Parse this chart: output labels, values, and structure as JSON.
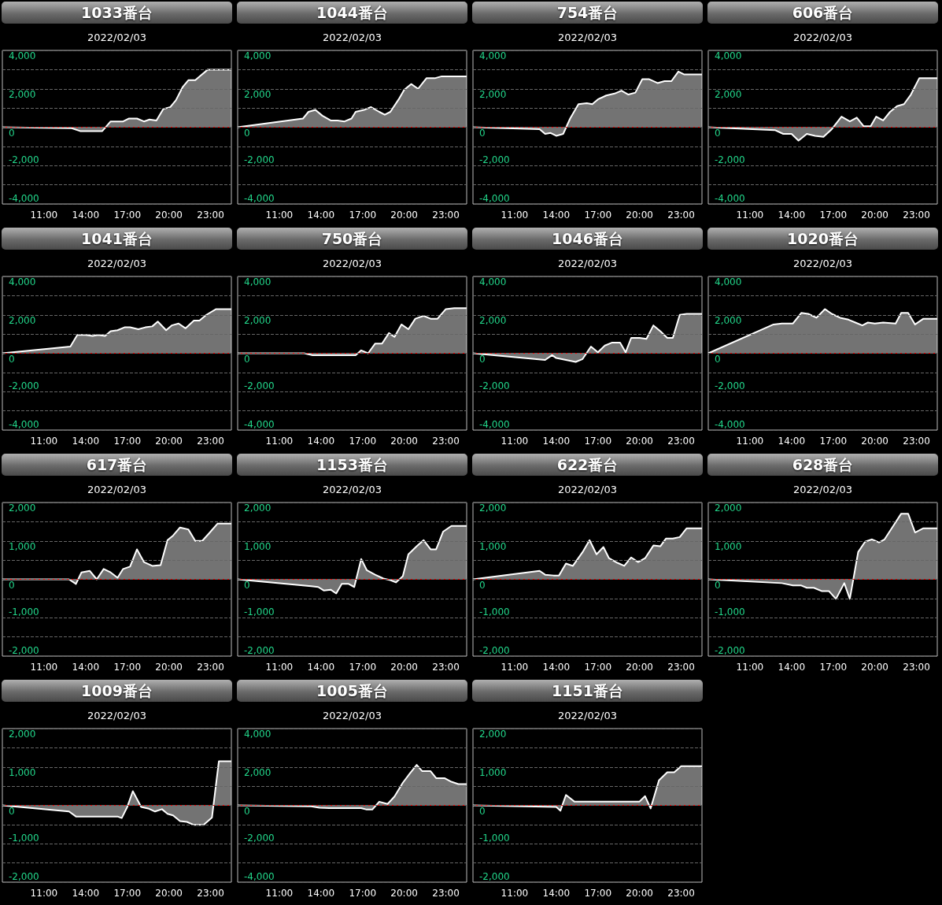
{
  "chart_data": [
    {
      "type": "area",
      "title": "1033番台",
      "subtitle": "2022/02/03",
      "color": "#ffffff",
      "grid": "y",
      "marker": "none",
      "xlim": [
        8,
        24.5
      ],
      "xticks": [
        {
          "value": 11,
          "label": "11:00"
        },
        {
          "value": 14,
          "label": "14:00"
        },
        {
          "value": 17,
          "label": "17:00"
        },
        {
          "value": 20,
          "label": "20:00"
        },
        {
          "value": 23,
          "label": "23:00"
        }
      ],
      "ylim": [
        -4000,
        4000
      ],
      "yticks": [
        {
          "value": -4000,
          "label": "-4,000"
        },
        {
          "value": -3000,
          "label": null
        },
        {
          "value": -2000,
          "label": "-2,000"
        },
        {
          "value": -1000,
          "label": null
        },
        {
          "value": 0,
          "label": "0"
        },
        {
          "value": 1000,
          "label": null
        },
        {
          "value": 2000,
          "label": "2,000"
        },
        {
          "value": 3000,
          "label": null
        },
        {
          "value": 4000,
          "label": "4,000"
        }
      ],
      "ref_lines": [
        {
          "axis": "y",
          "value": 0,
          "color": "#ff0000"
        }
      ],
      "x": [
        8,
        13,
        13.6,
        15.2,
        15.8,
        16.2,
        16.7,
        17.1,
        17.7,
        18.2,
        18.6,
        19.1,
        19.6,
        20.1,
        20.5,
        21,
        21.4,
        21.9,
        22.3,
        22.8,
        23.2,
        24.5
      ],
      "values": [
        0,
        -50,
        -200,
        -200,
        300,
        300,
        300,
        450,
        450,
        300,
        400,
        350,
        950,
        1050,
        1400,
        2100,
        2450,
        2450,
        2700,
        3000,
        3000,
        3000
      ]
    },
    {
      "type": "area",
      "title": "1044番台",
      "subtitle": "2022/02/03",
      "color": "#ffffff",
      "grid": "y",
      "marker": "none",
      "xlim": [
        8,
        24.5
      ],
      "xticks": [
        {
          "value": 11,
          "label": "11:00"
        },
        {
          "value": 14,
          "label": "14:00"
        },
        {
          "value": 17,
          "label": "17:00"
        },
        {
          "value": 20,
          "label": "20:00"
        },
        {
          "value": 23,
          "label": "23:00"
        }
      ],
      "ylim": [
        -4000,
        4000
      ],
      "yticks": [
        {
          "value": -4000,
          "label": "-4,000"
        },
        {
          "value": -3000,
          "label": null
        },
        {
          "value": -2000,
          "label": "-2,000"
        },
        {
          "value": -1000,
          "label": null
        },
        {
          "value": 0,
          "label": "0"
        },
        {
          "value": 1000,
          "label": null
        },
        {
          "value": 2000,
          "label": "2,000"
        },
        {
          "value": 3000,
          "label": null
        },
        {
          "value": 4000,
          "label": "4,000"
        }
      ],
      "ref_lines": [
        {
          "axis": "y",
          "value": 0,
          "color": "#ff0000"
        }
      ],
      "x": [
        8,
        12.7,
        13.1,
        13.6,
        14.1,
        14.7,
        15.2,
        15.7,
        16.2,
        16.5,
        17.1,
        17.6,
        18.2,
        18.6,
        19,
        19.6,
        20,
        20.5,
        21,
        21.6,
        22.2,
        22.7,
        23.3,
        24.5
      ],
      "values": [
        0,
        450,
        800,
        900,
        600,
        350,
        350,
        300,
        450,
        800,
        900,
        1050,
        800,
        650,
        800,
        1450,
        1950,
        2250,
        2000,
        2550,
        2550,
        2650,
        2650,
        2650
      ]
    },
    {
      "type": "area",
      "title": "754番台",
      "subtitle": "2022/02/03",
      "color": "#ffffff",
      "grid": "y",
      "marker": "none",
      "xlim": [
        8,
        24.5
      ],
      "xticks": [
        {
          "value": 11,
          "label": "11:00"
        },
        {
          "value": 14,
          "label": "14:00"
        },
        {
          "value": 17,
          "label": "17:00"
        },
        {
          "value": 20,
          "label": "20:00"
        },
        {
          "value": 23,
          "label": "23:00"
        }
      ],
      "ylim": [
        -4000,
        4000
      ],
      "yticks": [
        {
          "value": -4000,
          "label": "-4,000"
        },
        {
          "value": -3000,
          "label": null
        },
        {
          "value": -2000,
          "label": "-2,000"
        },
        {
          "value": -1000,
          "label": null
        },
        {
          "value": 0,
          "label": "0"
        },
        {
          "value": 1000,
          "label": null
        },
        {
          "value": 2000,
          "label": "2,000"
        },
        {
          "value": 3000,
          "label": null
        },
        {
          "value": 4000,
          "label": "4,000"
        }
      ],
      "ref_lines": [
        {
          "axis": "y",
          "value": 0,
          "color": "#ff0000"
        }
      ],
      "x": [
        8,
        12.8,
        13.2,
        13.6,
        14,
        14.5,
        15,
        15.6,
        16.2,
        16.6,
        17,
        17.6,
        18.2,
        18.7,
        19.2,
        19.7,
        20.2,
        20.7,
        21.3,
        21.8,
        22.3,
        22.8,
        23.2,
        24.5
      ],
      "values": [
        0,
        -100,
        -350,
        -300,
        -450,
        -350,
        450,
        1200,
        1250,
        1200,
        1450,
        1650,
        1750,
        1900,
        1700,
        1800,
        2500,
        2500,
        2300,
        2400,
        2400,
        2900,
        2750,
        2750
      ]
    },
    {
      "type": "area",
      "title": "606番台",
      "subtitle": "2022/02/03",
      "color": "#ffffff",
      "grid": "y",
      "marker": "none",
      "xlim": [
        8,
        24.5
      ],
      "xticks": [
        {
          "value": 11,
          "label": "11:00"
        },
        {
          "value": 14,
          "label": "14:00"
        },
        {
          "value": 17,
          "label": "17:00"
        },
        {
          "value": 20,
          "label": "20:00"
        },
        {
          "value": 23,
          "label": "23:00"
        }
      ],
      "ylim": [
        -4000,
        4000
      ],
      "yticks": [
        {
          "value": -4000,
          "label": "-4,000"
        },
        {
          "value": -3000,
          "label": null
        },
        {
          "value": -2000,
          "label": "-2,000"
        },
        {
          "value": -1000,
          "label": null
        },
        {
          "value": 0,
          "label": "0"
        },
        {
          "value": 1000,
          "label": null
        },
        {
          "value": 2000,
          "label": "2,000"
        },
        {
          "value": 3000,
          "label": null
        },
        {
          "value": 4000,
          "label": "4,000"
        }
      ],
      "ref_lines": [
        {
          "axis": "y",
          "value": 0,
          "color": "#ff0000"
        }
      ],
      "x": [
        8,
        12.8,
        13.4,
        14,
        14.5,
        15.1,
        15.7,
        16.3,
        16.9,
        17.6,
        18.2,
        18.7,
        19.2,
        19.7,
        20.1,
        20.6,
        21.1,
        21.6,
        22.1,
        22.6,
        23.2,
        24.5
      ],
      "values": [
        0,
        -150,
        -350,
        -350,
        -700,
        -350,
        -450,
        -500,
        -100,
        550,
        300,
        500,
        50,
        50,
        550,
        350,
        800,
        1100,
        1200,
        1700,
        2550,
        2550
      ]
    },
    {
      "type": "area",
      "title": "1041番台",
      "subtitle": "2022/02/03",
      "color": "#ffffff",
      "grid": "y",
      "marker": "none",
      "xlim": [
        8,
        24.5
      ],
      "xticks": [
        {
          "value": 11,
          "label": "11:00"
        },
        {
          "value": 14,
          "label": "14:00"
        },
        {
          "value": 17,
          "label": "17:00"
        },
        {
          "value": 20,
          "label": "20:00"
        },
        {
          "value": 23,
          "label": "23:00"
        }
      ],
      "ylim": [
        -4000,
        4000
      ],
      "yticks": [
        {
          "value": -4000,
          "label": "-4,000"
        },
        {
          "value": -3000,
          "label": null
        },
        {
          "value": -2000,
          "label": "-2,000"
        },
        {
          "value": -1000,
          "label": null
        },
        {
          "value": 0,
          "label": "0"
        },
        {
          "value": 1000,
          "label": null
        },
        {
          "value": 2000,
          "label": "2,000"
        },
        {
          "value": 3000,
          "label": null
        },
        {
          "value": 4000,
          "label": "4,000"
        }
      ],
      "ref_lines": [
        {
          "axis": "y",
          "value": 0,
          "color": "#ff0000"
        }
      ],
      "x": [
        8,
        12.9,
        13.4,
        14,
        14.5,
        14.9,
        15.4,
        15.8,
        16.3,
        16.8,
        17.2,
        17.8,
        18.3,
        18.8,
        19.2,
        19.8,
        20.2,
        20.7,
        21.2,
        21.8,
        22.2,
        22.7,
        23.4,
        24.5
      ],
      "values": [
        0,
        350,
        950,
        950,
        900,
        950,
        900,
        1150,
        1200,
        1350,
        1350,
        1250,
        1350,
        1400,
        1650,
        1200,
        1450,
        1550,
        1300,
        1700,
        1700,
        2000,
        2300,
        2300
      ]
    },
    {
      "type": "area",
      "title": "750番台",
      "subtitle": "2022/02/03",
      "color": "#ffffff",
      "grid": "y",
      "marker": "none",
      "xlim": [
        8,
        24.5
      ],
      "xticks": [
        {
          "value": 11,
          "label": "11:00"
        },
        {
          "value": 14,
          "label": "14:00"
        },
        {
          "value": 17,
          "label": "17:00"
        },
        {
          "value": 20,
          "label": "20:00"
        },
        {
          "value": 23,
          "label": "23:00"
        }
      ],
      "ylim": [
        -4000,
        4000
      ],
      "yticks": [
        {
          "value": -4000,
          "label": "-4,000"
        },
        {
          "value": -3000,
          "label": null
        },
        {
          "value": -2000,
          "label": "-2,000"
        },
        {
          "value": -1000,
          "label": null
        },
        {
          "value": 0,
          "label": "0"
        },
        {
          "value": 1000,
          "label": null
        },
        {
          "value": 2000,
          "label": "2,000"
        },
        {
          "value": 3000,
          "label": null
        },
        {
          "value": 4000,
          "label": "4,000"
        }
      ],
      "ref_lines": [
        {
          "axis": "y",
          "value": 0,
          "color": "#ff0000"
        }
      ],
      "x": [
        8,
        12.8,
        13.4,
        16.5,
        16.9,
        17.4,
        17.9,
        18.4,
        18.9,
        19.3,
        19.8,
        20.3,
        20.8,
        21.4,
        21.9,
        22.4,
        23,
        23.6,
        24.5
      ],
      "values": [
        0,
        0,
        -100,
        -100,
        150,
        0,
        500,
        500,
        1050,
        850,
        1500,
        1250,
        1800,
        1950,
        1800,
        1800,
        2300,
        2350,
        2350
      ]
    },
    {
      "type": "area",
      "title": "1046番台",
      "subtitle": "2022/02/03",
      "color": "#ffffff",
      "grid": "y",
      "marker": "none",
      "xlim": [
        8,
        24.5
      ],
      "xticks": [
        {
          "value": 11,
          "label": "11:00"
        },
        {
          "value": 14,
          "label": "14:00"
        },
        {
          "value": 17,
          "label": "17:00"
        },
        {
          "value": 20,
          "label": "20:00"
        },
        {
          "value": 23,
          "label": "23:00"
        }
      ],
      "ylim": [
        -4000,
        4000
      ],
      "yticks": [
        {
          "value": -4000,
          "label": "-4,000"
        },
        {
          "value": -3000,
          "label": null
        },
        {
          "value": -2000,
          "label": "-2,000"
        },
        {
          "value": -1000,
          "label": null
        },
        {
          "value": 0,
          "label": "0"
        },
        {
          "value": 1000,
          "label": null
        },
        {
          "value": 2000,
          "label": "2,000"
        },
        {
          "value": 3000,
          "label": null
        },
        {
          "value": 4000,
          "label": "4,000"
        }
      ],
      "ref_lines": [
        {
          "axis": "y",
          "value": 0,
          "color": "#ff0000"
        }
      ],
      "x": [
        8,
        13.2,
        13.7,
        14,
        14.7,
        15.4,
        15.9,
        16.5,
        17,
        17.5,
        18,
        18.6,
        19,
        19.4,
        20,
        20.5,
        21,
        21.5,
        22,
        22.4,
        22.9,
        23.4,
        24.5
      ],
      "values": [
        0,
        -350,
        -100,
        -250,
        -350,
        -450,
        -300,
        350,
        50,
        400,
        550,
        550,
        50,
        800,
        800,
        750,
        1450,
        1150,
        800,
        800,
        2000,
        2050,
        2050
      ]
    },
    {
      "type": "area",
      "title": "1020番台",
      "subtitle": "2022/02/03",
      "color": "#ffffff",
      "grid": "y",
      "marker": "none",
      "xlim": [
        8,
        24.5
      ],
      "xticks": [
        {
          "value": 11,
          "label": "11:00"
        },
        {
          "value": 14,
          "label": "14:00"
        },
        {
          "value": 17,
          "label": "17:00"
        },
        {
          "value": 20,
          "label": "20:00"
        },
        {
          "value": 23,
          "label": "23:00"
        }
      ],
      "ylim": [
        -4000,
        4000
      ],
      "yticks": [
        {
          "value": -4000,
          "label": "-4,000"
        },
        {
          "value": -3000,
          "label": null
        },
        {
          "value": -2000,
          "label": "-2,000"
        },
        {
          "value": -1000,
          "label": null
        },
        {
          "value": 0,
          "label": "0"
        },
        {
          "value": 1000,
          "label": null
        },
        {
          "value": 2000,
          "label": "2,000"
        },
        {
          "value": 3000,
          "label": null
        },
        {
          "value": 4000,
          "label": "4,000"
        }
      ],
      "ref_lines": [
        {
          "axis": "y",
          "value": 0,
          "color": "#ff0000"
        }
      ],
      "x": [
        8,
        12.7,
        13.3,
        14.1,
        14.7,
        15.2,
        15.8,
        16.4,
        16.9,
        17.5,
        18.1,
        18.6,
        19.1,
        19.5,
        20,
        20.6,
        21.5,
        21.9,
        22.4,
        22.9,
        23.5,
        24.5
      ],
      "values": [
        0,
        1500,
        1550,
        1550,
        2100,
        2050,
        1850,
        2300,
        2050,
        1850,
        1750,
        1600,
        1450,
        1600,
        1550,
        1600,
        1550,
        2100,
        2100,
        1500,
        1800,
        1800
      ]
    },
    {
      "type": "area",
      "title": "617番台",
      "subtitle": "2022/02/03",
      "color": "#ffffff",
      "grid": "y",
      "marker": "none",
      "xlim": [
        8,
        24.5
      ],
      "xticks": [
        {
          "value": 11,
          "label": "11:00"
        },
        {
          "value": 14,
          "label": "14:00"
        },
        {
          "value": 17,
          "label": "17:00"
        },
        {
          "value": 20,
          "label": "20:00"
        },
        {
          "value": 23,
          "label": "23:00"
        }
      ],
      "ylim": [
        -2000,
        2000
      ],
      "yticks": [
        {
          "value": -2000,
          "label": "-2,000"
        },
        {
          "value": -1500,
          "label": null
        },
        {
          "value": -1000,
          "label": "-1,000"
        },
        {
          "value": -500,
          "label": null
        },
        {
          "value": 0,
          "label": "0"
        },
        {
          "value": 500,
          "label": null
        },
        {
          "value": 1000,
          "label": "1,000"
        },
        {
          "value": 1500,
          "label": null
        },
        {
          "value": 2000,
          "label": "2,000"
        }
      ],
      "ref_lines": [
        {
          "axis": "y",
          "value": 0,
          "color": "#ff0000"
        }
      ],
      "x": [
        8,
        12.8,
        13.3,
        13.7,
        14.3,
        14.8,
        15.3,
        15.8,
        16.3,
        16.7,
        17.2,
        17.7,
        18.2,
        18.8,
        19.4,
        19.9,
        20.3,
        20.8,
        21.4,
        21.9,
        22.4,
        22.9,
        23.5,
        24.5
      ],
      "values": [
        0,
        0,
        -120,
        180,
        220,
        0,
        270,
        180,
        40,
        270,
        330,
        780,
        450,
        350,
        370,
        1020,
        1140,
        1350,
        1300,
        1000,
        1000,
        1200,
        1450,
        1450
      ]
    },
    {
      "type": "area",
      "title": "1153番台",
      "subtitle": "2022/02/03",
      "color": "#ffffff",
      "grid": "y",
      "marker": "none",
      "xlim": [
        8,
        24.5
      ],
      "xticks": [
        {
          "value": 11,
          "label": "11:00"
        },
        {
          "value": 14,
          "label": "14:00"
        },
        {
          "value": 17,
          "label": "17:00"
        },
        {
          "value": 20,
          "label": "20:00"
        },
        {
          "value": 23,
          "label": "23:00"
        }
      ],
      "ylim": [
        -2000,
        2000
      ],
      "yticks": [
        {
          "value": -2000,
          "label": "-2,000"
        },
        {
          "value": -1500,
          "label": null
        },
        {
          "value": -1000,
          "label": "-1,000"
        },
        {
          "value": -500,
          "label": null
        },
        {
          "value": 0,
          "label": "0"
        },
        {
          "value": 500,
          "label": null
        },
        {
          "value": 1000,
          "label": "1,000"
        },
        {
          "value": 1500,
          "label": null
        },
        {
          "value": 2000,
          "label": "2,000"
        }
      ],
      "ref_lines": [
        {
          "axis": "y",
          "value": 0,
          "color": "#ff0000"
        }
      ],
      "x": [
        8,
        13.3,
        13.8,
        14.2,
        14.7,
        15.1,
        15.5,
        16,
        16.4,
        16.9,
        17.3,
        17.9,
        18.5,
        19,
        19.4,
        19.9,
        20.3,
        20.9,
        21.4,
        21.9,
        22.3,
        22.8,
        23.4,
        24.5
      ],
      "values": [
        0,
        -180,
        -200,
        -290,
        -270,
        -370,
        -120,
        -120,
        -200,
        530,
        240,
        120,
        20,
        -20,
        -80,
        80,
        650,
        860,
        1020,
        780,
        780,
        1240,
        1390,
        1390
      ]
    },
    {
      "type": "area",
      "title": "622番台",
      "subtitle": "2022/02/03",
      "color": "#ffffff",
      "grid": "y",
      "marker": "none",
      "xlim": [
        8,
        24.5
      ],
      "xticks": [
        {
          "value": 11,
          "label": "11:00"
        },
        {
          "value": 14,
          "label": "14:00"
        },
        {
          "value": 17,
          "label": "17:00"
        },
        {
          "value": 20,
          "label": "20:00"
        },
        {
          "value": 23,
          "label": "23:00"
        }
      ],
      "ylim": [
        -2000,
        2000
      ],
      "yticks": [
        {
          "value": -2000,
          "label": "-2,000"
        },
        {
          "value": -1500,
          "label": null
        },
        {
          "value": -1000,
          "label": "-1,000"
        },
        {
          "value": -500,
          "label": null
        },
        {
          "value": 0,
          "label": "0"
        },
        {
          "value": 500,
          "label": null
        },
        {
          "value": 1000,
          "label": "1,000"
        },
        {
          "value": 1500,
          "label": null
        },
        {
          "value": 2000,
          "label": "2,000"
        }
      ],
      "ref_lines": [
        {
          "axis": "y",
          "value": 0,
          "color": "#ff0000"
        }
      ],
      "x": [
        8,
        12.8,
        13.2,
        13.8,
        14.2,
        14.7,
        15.2,
        15.9,
        16.4,
        16.9,
        17.4,
        17.8,
        18.4,
        18.9,
        19.4,
        19.9,
        20.4,
        21,
        21.5,
        21.9,
        22.4,
        22.9,
        23.4,
        24.5
      ],
      "values": [
        0,
        220,
        120,
        100,
        100,
        410,
        350,
        710,
        1020,
        650,
        840,
        550,
        430,
        350,
        570,
        450,
        550,
        880,
        860,
        1060,
        1060,
        1100,
        1330,
        1330
      ]
    },
    {
      "type": "area",
      "title": "628番台",
      "subtitle": "2022/02/03",
      "color": "#ffffff",
      "grid": "y",
      "marker": "none",
      "xlim": [
        8,
        24.5
      ],
      "xticks": [
        {
          "value": 11,
          "label": "11:00"
        },
        {
          "value": 14,
          "label": "14:00"
        },
        {
          "value": 17,
          "label": "17:00"
        },
        {
          "value": 20,
          "label": "20:00"
        },
        {
          "value": 23,
          "label": "23:00"
        }
      ],
      "ylim": [
        -2000,
        2000
      ],
      "yticks": [
        {
          "value": -2000,
          "label": "-2,000"
        },
        {
          "value": -1500,
          "label": null
        },
        {
          "value": -1000,
          "label": "-1,000"
        },
        {
          "value": -500,
          "label": null
        },
        {
          "value": 0,
          "label": "0"
        },
        {
          "value": 500,
          "label": null
        },
        {
          "value": 1000,
          "label": "1,000"
        },
        {
          "value": 1500,
          "label": null
        },
        {
          "value": 2000,
          "label": "2,000"
        }
      ],
      "ref_lines": [
        {
          "axis": "y",
          "value": 0,
          "color": "#ff0000"
        }
      ],
      "x": [
        8,
        13.3,
        14.1,
        14.7,
        15.1,
        15.6,
        16.2,
        16.7,
        17.2,
        17.8,
        18.2,
        18.8,
        19.3,
        19.8,
        20.3,
        20.7,
        21.4,
        21.9,
        22.4,
        22.9,
        23.5,
        24.5
      ],
      "values": [
        0,
        -100,
        -160,
        -160,
        -220,
        -220,
        -310,
        -310,
        -510,
        -100,
        -510,
        710,
        980,
        1040,
        960,
        1040,
        1430,
        1710,
        1710,
        1220,
        1330,
        1330
      ]
    },
    {
      "type": "area",
      "title": "1009番台",
      "subtitle": "2022/02/03",
      "color": "#ffffff",
      "grid": "y",
      "marker": "none",
      "xlim": [
        8,
        24.5
      ],
      "xticks": [
        {
          "value": 11,
          "label": "11:00"
        },
        {
          "value": 14,
          "label": "14:00"
        },
        {
          "value": 17,
          "label": "17:00"
        },
        {
          "value": 20,
          "label": "20:00"
        },
        {
          "value": 23,
          "label": "23:00"
        }
      ],
      "ylim": [
        -2000,
        2000
      ],
      "yticks": [
        {
          "value": -2000,
          "label": "-2,000"
        },
        {
          "value": -1500,
          "label": null
        },
        {
          "value": -1000,
          "label": "-1,000"
        },
        {
          "value": -500,
          "label": null
        },
        {
          "value": 0,
          "label": "0"
        },
        {
          "value": 500,
          "label": null
        },
        {
          "value": 1000,
          "label": "1,000"
        },
        {
          "value": 1500,
          "label": null
        },
        {
          "value": 2000,
          "label": "2,000"
        }
      ],
      "ref_lines": [
        {
          "axis": "y",
          "value": 0,
          "color": "#ff0000"
        }
      ],
      "x": [
        8,
        12.8,
        13.3,
        16.3,
        16.6,
        17,
        17.4,
        18,
        18.5,
        19,
        19.5,
        19.9,
        20.3,
        20.8,
        21.3,
        21.8,
        22.5,
        23.1,
        23.6,
        24.5
      ],
      "values": [
        0,
        -160,
        -290,
        -290,
        -330,
        -40,
        370,
        -40,
        -80,
        -160,
        -100,
        -220,
        -260,
        -410,
        -430,
        -510,
        -510,
        -320,
        1150,
        1150
      ]
    },
    {
      "type": "area",
      "title": "1005番台",
      "subtitle": "2022/02/03",
      "color": "#ffffff",
      "grid": "y",
      "marker": "none",
      "xlim": [
        8,
        24.5
      ],
      "xticks": [
        {
          "value": 11,
          "label": "11:00"
        },
        {
          "value": 14,
          "label": "14:00"
        },
        {
          "value": 17,
          "label": "17:00"
        },
        {
          "value": 20,
          "label": "20:00"
        },
        {
          "value": 23,
          "label": "23:00"
        }
      ],
      "ylim": [
        -4000,
        4000
      ],
      "yticks": [
        {
          "value": -4000,
          "label": "-4,000"
        },
        {
          "value": -3000,
          "label": null
        },
        {
          "value": -2000,
          "label": "-2,000"
        },
        {
          "value": -1000,
          "label": null
        },
        {
          "value": 0,
          "label": "0"
        },
        {
          "value": 1000,
          "label": null
        },
        {
          "value": 2000,
          "label": "2,000"
        },
        {
          "value": 3000,
          "label": null
        },
        {
          "value": 4000,
          "label": "4,000"
        }
      ],
      "ref_lines": [
        {
          "axis": "y",
          "value": 0,
          "color": "#ff0000"
        }
      ],
      "x": [
        8,
        13.3,
        13.9,
        14.6,
        16.9,
        17.3,
        17.7,
        18.2,
        18.8,
        19.3,
        19.9,
        20.4,
        20.9,
        21.3,
        21.9,
        22.3,
        22.9,
        23.4,
        23.9,
        24.5
      ],
      "values": [
        0,
        -50,
        -120,
        -140,
        -140,
        -220,
        -220,
        190,
        70,
        460,
        1180,
        1660,
        2110,
        1780,
        1780,
        1420,
        1420,
        1230,
        1110,
        1110
      ]
    },
    {
      "type": "area",
      "title": "1151番台",
      "subtitle": "2022/02/03",
      "color": "#ffffff",
      "grid": "y",
      "marker": "none",
      "xlim": [
        8,
        24.5
      ],
      "xticks": [
        {
          "value": 11,
          "label": "11:00"
        },
        {
          "value": 14,
          "label": "14:00"
        },
        {
          "value": 17,
          "label": "17:00"
        },
        {
          "value": 20,
          "label": "20:00"
        },
        {
          "value": 23,
          "label": "23:00"
        }
      ],
      "ylim": [
        -2000,
        2000
      ],
      "yticks": [
        {
          "value": -2000,
          "label": "-2,000"
        },
        {
          "value": -1500,
          "label": null
        },
        {
          "value": -1000,
          "label": "-1,000"
        },
        {
          "value": -500,
          "label": null
        },
        {
          "value": 0,
          "label": "0"
        },
        {
          "value": 500,
          "label": null
        },
        {
          "value": 1000,
          "label": "1,000"
        },
        {
          "value": 1500,
          "label": null
        },
        {
          "value": 2000,
          "label": "2,000"
        }
      ],
      "ref_lines": [
        {
          "axis": "y",
          "value": 0,
          "color": "#ff0000"
        }
      ],
      "x": [
        8,
        14,
        14.3,
        14.7,
        15.3,
        20,
        20.4,
        20.8,
        21.4,
        22,
        22.5,
        23,
        24.5
      ],
      "values": [
        0,
        -40,
        -140,
        270,
        100,
        100,
        240,
        -80,
        650,
        860,
        860,
        1020,
        1020
      ]
    }
  ]
}
